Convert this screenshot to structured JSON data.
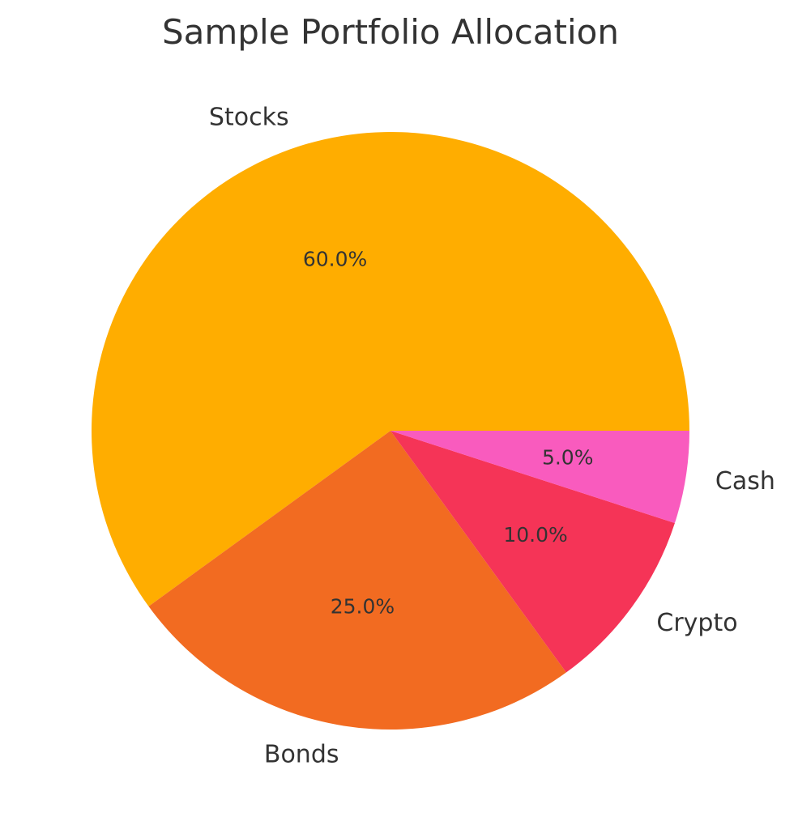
{
  "chart_data": {
    "type": "pie",
    "title": "Sample Portfolio Allocation",
    "slices": [
      {
        "label": "Stocks",
        "value": 60,
        "percent_label": "60.0%",
        "color": "#FFAD00"
      },
      {
        "label": "Bonds",
        "value": 25,
        "percent_label": "25.0%",
        "color": "#F26B21"
      },
      {
        "label": "Crypto",
        "value": 10,
        "percent_label": "10.0%",
        "color": "#F53457"
      },
      {
        "label": "Cash",
        "value": 5,
        "percent_label": "5.0%",
        "color": "#F95BBE"
      }
    ],
    "start_angle_deg": 0,
    "direction": "counterclockwise"
  }
}
